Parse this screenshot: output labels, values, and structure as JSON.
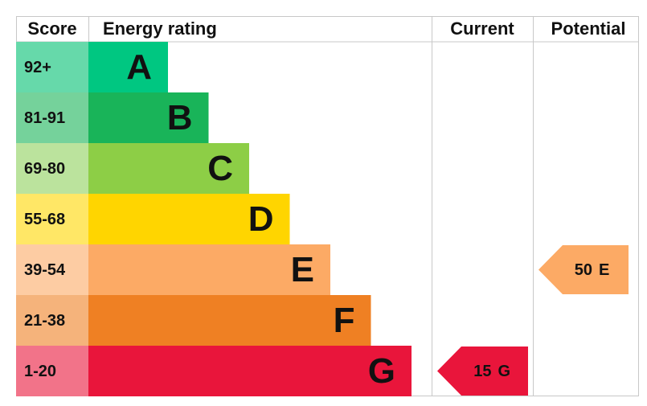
{
  "header": {
    "score": "Score",
    "energy_rating": "Energy rating",
    "current": "Current",
    "potential": "Potential"
  },
  "bands": [
    {
      "score": "92+",
      "letter": "A",
      "color": "#00c781",
      "score_color": "#66d9aa"
    },
    {
      "score": "81-91",
      "letter": "B",
      "color": "#19b459",
      "score_color": "#75d29b"
    },
    {
      "score": "69-80",
      "letter": "C",
      "color": "#8dce46",
      "score_color": "#bbe39d"
    },
    {
      "score": "55-68",
      "letter": "D",
      "color": "#ffd500",
      "score_color": "#ffe766"
    },
    {
      "score": "39-54",
      "letter": "E",
      "color": "#fcaa65",
      "score_color": "#fdcca3"
    },
    {
      "score": "21-38",
      "letter": "F",
      "color": "#ef8023",
      "score_color": "#f5b37b"
    },
    {
      "score": "1-20",
      "letter": "G",
      "color": "#e9153b",
      "score_color": "#f27389"
    }
  ],
  "current": {
    "value": 15,
    "rating": "G"
  },
  "potential": {
    "value": 50,
    "rating": "E"
  }
}
